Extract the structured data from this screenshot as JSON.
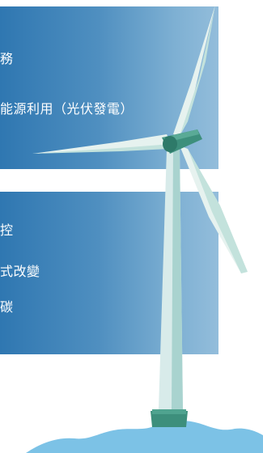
{
  "panels": {
    "top": {
      "lines": [
        "務",
        "能源利用（光伏發電）"
      ]
    },
    "bottom": {
      "lines": [
        "控",
        "式改變",
        "碳"
      ]
    }
  },
  "illustration": {
    "subject": "wind-turbine",
    "colors": {
      "tower": "#d8ebea",
      "tower_shade": "#a9d3cf",
      "nacelle": "#3d8f7c",
      "blade": "#e6f2ef",
      "base": "#3d8f7c",
      "water": "#7cc2e6"
    }
  },
  "colors": {
    "panel_start": "#2f77b1",
    "panel_end": "#93bddb",
    "text": "#ffffff"
  }
}
